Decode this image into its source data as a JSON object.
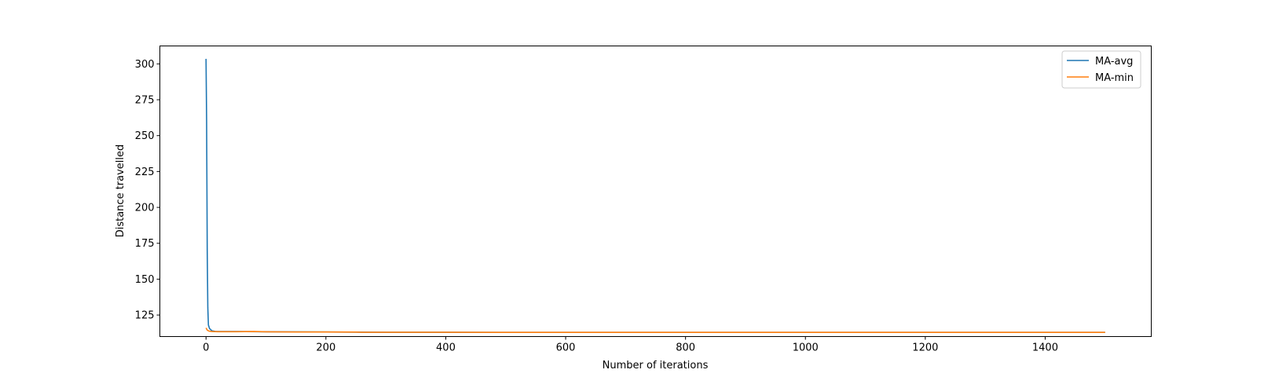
{
  "chart_data": {
    "type": "line",
    "title": "",
    "xlabel": "Number of iterations",
    "ylabel": "Distance travelled",
    "xlim": [
      -77,
      1577
    ],
    "ylim": [
      110.0,
      312.5
    ],
    "xticks": [
      0,
      200,
      400,
      600,
      800,
      1000,
      1200,
      1400
    ],
    "yticks": [
      125,
      150,
      175,
      200,
      225,
      250,
      275,
      300
    ],
    "grid": false,
    "legend_position": "top-right",
    "series": [
      {
        "name": "MA-avg",
        "color": "#1f77b4",
        "points": [
          [
            0,
            303.5
          ],
          [
            1,
            260
          ],
          [
            2,
            170
          ],
          [
            3,
            130
          ],
          [
            4,
            118
          ],
          [
            6,
            115.5
          ],
          [
            10,
            114
          ],
          [
            15,
            113.6
          ],
          [
            25,
            113.5
          ],
          [
            50,
            113.5
          ],
          [
            100,
            113.3
          ],
          [
            200,
            113.2
          ],
          [
            300,
            113.0
          ],
          [
            400,
            113.0
          ],
          [
            500,
            112.9
          ],
          [
            700,
            112.9
          ],
          [
            900,
            112.9
          ],
          [
            1100,
            112.9
          ],
          [
            1300,
            112.9
          ],
          [
            1500,
            112.9
          ]
        ]
      },
      {
        "name": "MA-min",
        "color": "#ff7f0e",
        "points": [
          [
            0,
            116
          ],
          [
            2,
            114.5
          ],
          [
            5,
            113.8
          ],
          [
            10,
            113.5
          ],
          [
            20,
            113.4
          ],
          [
            50,
            113.4
          ],
          [
            80,
            113.5
          ],
          [
            100,
            113.3
          ],
          [
            150,
            113.2
          ],
          [
            200,
            113.2
          ],
          [
            250,
            113.1
          ],
          [
            260,
            113.0
          ],
          [
            400,
            113.0
          ],
          [
            500,
            112.9
          ],
          [
            700,
            112.9
          ],
          [
            900,
            112.9
          ],
          [
            1100,
            112.9
          ],
          [
            1300,
            112.9
          ],
          [
            1500,
            112.9
          ]
        ]
      }
    ]
  }
}
